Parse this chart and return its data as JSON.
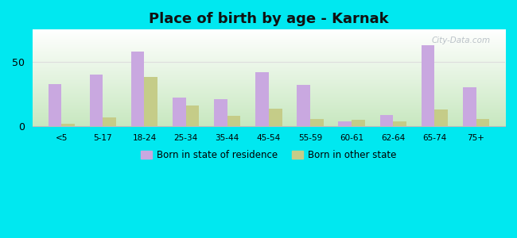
{
  "title": "Place of birth by age - Karnak",
  "categories": [
    "<5",
    "5-17",
    "18-24",
    "25-34",
    "35-44",
    "45-54",
    "55-59",
    "60-61",
    "62-64",
    "65-74",
    "75+"
  ],
  "born_in_state": [
    33,
    40,
    58,
    22,
    21,
    42,
    32,
    4,
    9,
    63,
    30
  ],
  "born_other_state": [
    2,
    7,
    38,
    16,
    8,
    14,
    6,
    5,
    4,
    13,
    6
  ],
  "color_state": "#c9a8e0",
  "color_other": "#c5cc88",
  "ylim": [
    0,
    75
  ],
  "yticks": [
    0,
    50
  ],
  "figure_bg": "#00e8f0",
  "legend_state": "Born in state of residence",
  "legend_other": "Born in other state",
  "bar_width": 0.32,
  "watermark": "City-Data.com"
}
